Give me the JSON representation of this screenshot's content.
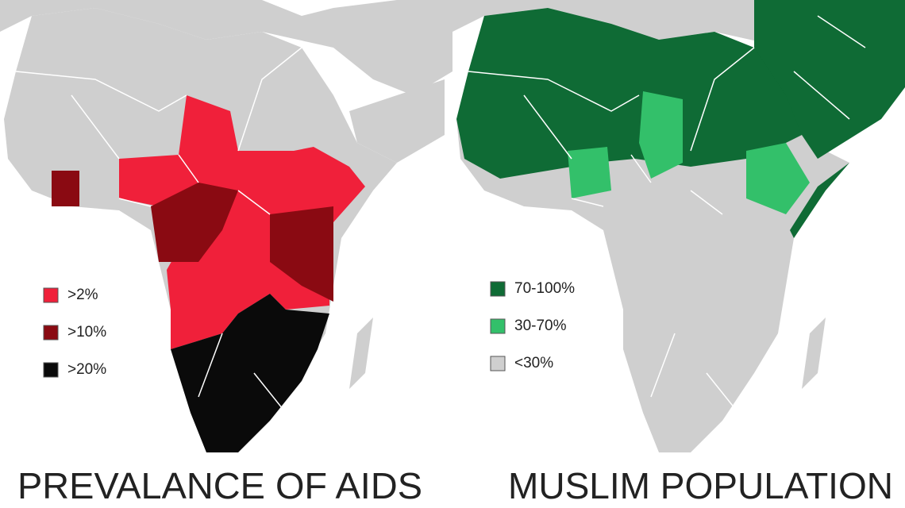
{
  "maps": [
    {
      "title": "PREVALANCE OF AIDS",
      "legend": [
        {
          "label": ">2%",
          "color": "#f0203a"
        },
        {
          "label": ">10%",
          "color": "#8a0a12"
        },
        {
          "label": ">20%",
          "color": "#0a0a0a"
        }
      ]
    },
    {
      "title": "MUSLIM POPULATION",
      "legend": [
        {
          "label": "70-100%",
          "color": "#0f6b35"
        },
        {
          "label": "30-70%",
          "color": "#33c06a"
        },
        {
          "label": "<30%",
          "color": "#cfcfcf"
        }
      ]
    }
  ]
}
